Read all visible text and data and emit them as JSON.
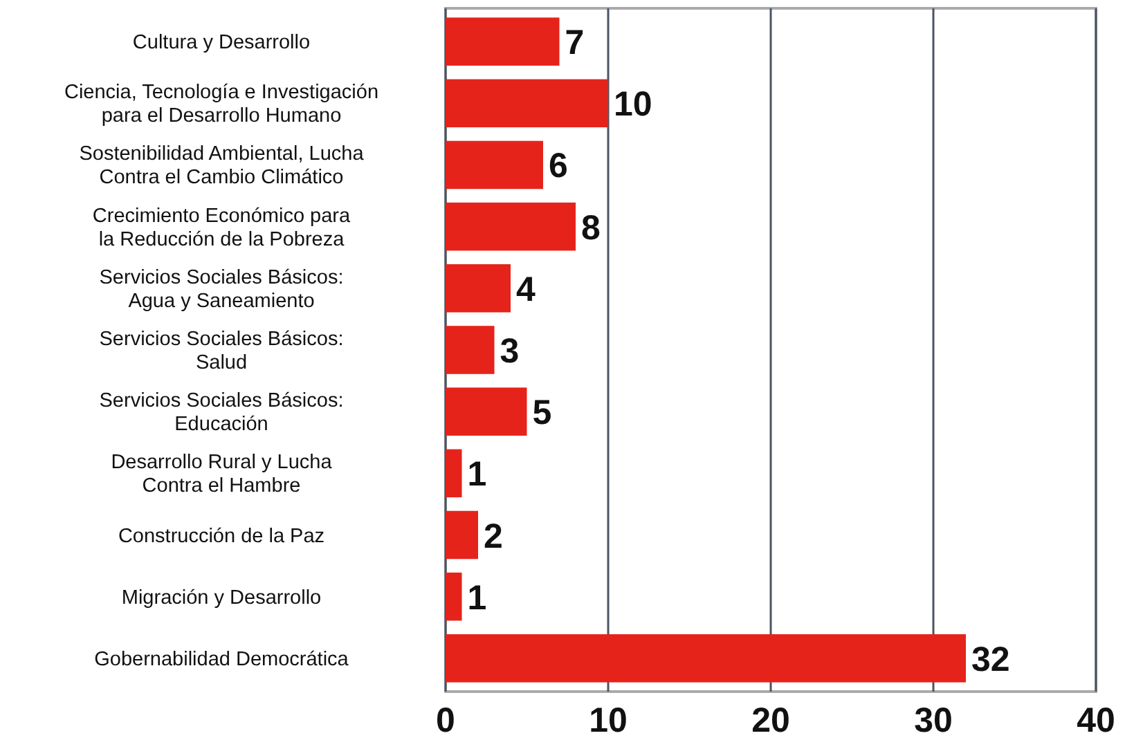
{
  "chart_data": {
    "type": "bar",
    "orientation": "horizontal",
    "categories": [
      "Cultura y Desarrollo",
      "Ciencia, Tecnología e Investigación\npara el Desarrollo Humano",
      "Sostenibilidad Ambiental, Lucha\nContra el Cambio Climático",
      "Crecimiento Económico para\nla Reducción de la Pobreza",
      "Servicios Sociales Básicos:\nAgua y Saneamiento",
      "Servicios Sociales Básicos:\nSalud",
      "Servicios Sociales Básicos:\nEducación",
      "Desarrollo Rural y Lucha\nContra el Hambre",
      "Construcción de la Paz",
      "Migración y Desarrollo",
      "Gobernabilidad Democrática"
    ],
    "values": [
      7,
      10,
      6,
      8,
      4,
      3,
      5,
      1,
      2,
      1,
      32
    ],
    "color": "#e5231b",
    "xlim": [
      0,
      40
    ],
    "xticks": [
      0,
      10,
      20,
      30,
      40
    ],
    "grid": "x",
    "data_labels": true
  }
}
